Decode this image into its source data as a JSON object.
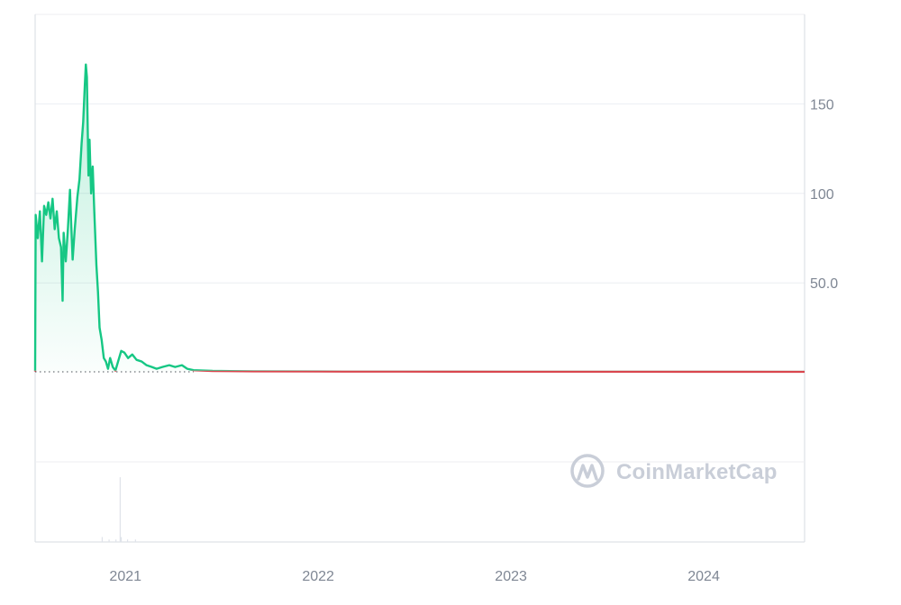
{
  "watermark": {
    "text": "CoinMarketCap",
    "icon": "coinmarketcap-logo-icon",
    "color": "#c9ced8"
  },
  "colors": {
    "up": "#16c784",
    "down": "#d9464e",
    "grid": "#eceef2",
    "axis": "#d7dbe2",
    "tick_text": "#7f8794",
    "baseline_dots": "#4a4f57",
    "volume": "#dfe3ea"
  },
  "chart_data": {
    "type": "area",
    "title": "",
    "xlabel": "",
    "ylabel": "",
    "grid": true,
    "y_axis_side": "right",
    "xlim": [
      "2020-07-14",
      "2024-07-10"
    ],
    "ylim": [
      -50,
      200
    ],
    "x_ticks": [
      {
        "date": "2021-01-01",
        "label": "2021"
      },
      {
        "date": "2022-01-01",
        "label": "2022"
      },
      {
        "date": "2023-01-01",
        "label": "2023"
      },
      {
        "date": "2024-01-01",
        "label": "2024"
      }
    ],
    "y_ticks": [
      {
        "value": 150,
        "label": "150"
      },
      {
        "value": 100,
        "label": "100"
      },
      {
        "value": 50,
        "label": "50.0"
      }
    ],
    "baseline": 0.3,
    "series": [
      {
        "color_above": "#16c784",
        "color_below": "#d9464e",
        "points": [
          [
            "2020-07-14",
            0.5
          ],
          [
            "2020-07-15",
            88
          ],
          [
            "2020-07-19",
            75
          ],
          [
            "2020-07-23",
            90
          ],
          [
            "2020-07-27",
            62
          ],
          [
            "2020-07-31",
            93
          ],
          [
            "2020-08-04",
            88
          ],
          [
            "2020-08-08",
            95
          ],
          [
            "2020-08-12",
            86
          ],
          [
            "2020-08-16",
            97
          ],
          [
            "2020-08-20",
            80
          ],
          [
            "2020-08-24",
            90
          ],
          [
            "2020-08-28",
            75
          ],
          [
            "2020-09-01",
            70
          ],
          [
            "2020-09-04",
            40
          ],
          [
            "2020-09-06",
            78
          ],
          [
            "2020-09-10",
            62
          ],
          [
            "2020-09-14",
            80
          ],
          [
            "2020-09-18",
            102
          ],
          [
            "2020-09-20",
            85
          ],
          [
            "2020-09-23",
            63
          ],
          [
            "2020-09-27",
            80
          ],
          [
            "2020-10-02",
            98
          ],
          [
            "2020-10-06",
            108
          ],
          [
            "2020-10-10",
            128
          ],
          [
            "2020-10-13",
            140
          ],
          [
            "2020-10-16",
            160
          ],
          [
            "2020-10-18",
            172
          ],
          [
            "2020-10-20",
            165
          ],
          [
            "2020-10-23",
            110
          ],
          [
            "2020-10-25",
            130
          ],
          [
            "2020-10-28",
            100
          ],
          [
            "2020-10-31",
            115
          ],
          [
            "2020-11-03",
            90
          ],
          [
            "2020-11-07",
            60
          ],
          [
            "2020-11-10",
            45
          ],
          [
            "2020-11-13",
            25
          ],
          [
            "2020-11-17",
            18
          ],
          [
            "2020-11-21",
            8
          ],
          [
            "2020-11-25",
            6
          ],
          [
            "2020-11-29",
            2
          ],
          [
            "2020-12-03",
            8
          ],
          [
            "2020-12-08",
            3
          ],
          [
            "2020-12-13",
            1
          ],
          [
            "2020-12-18",
            6
          ],
          [
            "2020-12-24",
            12
          ],
          [
            "2020-12-30",
            11
          ],
          [
            "2021-01-06",
            8
          ],
          [
            "2021-01-14",
            10
          ],
          [
            "2021-01-22",
            7
          ],
          [
            "2021-02-01",
            6
          ],
          [
            "2021-02-10",
            4
          ],
          [
            "2021-02-20",
            3
          ],
          [
            "2021-03-01",
            2
          ],
          [
            "2021-03-12",
            3
          ],
          [
            "2021-03-25",
            4
          ],
          [
            "2021-04-05",
            3
          ],
          [
            "2021-04-18",
            4
          ],
          [
            "2021-04-28",
            2
          ],
          [
            "2021-05-10",
            1.2
          ],
          [
            "2021-06-15",
            0.8
          ],
          [
            "2021-09-01",
            0.6
          ],
          [
            "2022-01-01",
            0.5
          ],
          [
            "2022-06-01",
            0.45
          ],
          [
            "2023-01-01",
            0.4
          ],
          [
            "2023-06-01",
            0.38
          ],
          [
            "2024-01-01",
            0.36
          ],
          [
            "2024-07-10",
            0.35
          ]
        ]
      }
    ],
    "volume": {
      "points": [
        [
          "2020-11-18",
          2
        ],
        [
          "2020-12-01",
          1
        ],
        [
          "2020-12-14",
          1
        ],
        [
          "2020-12-22",
          26
        ],
        [
          "2020-12-24",
          2
        ],
        [
          "2021-01-05",
          1
        ],
        [
          "2021-01-20",
          1
        ]
      ],
      "ylim": [
        0,
        30
      ]
    }
  }
}
